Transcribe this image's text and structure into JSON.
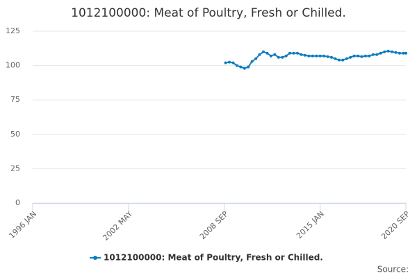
{
  "chart_data": {
    "type": "line",
    "title": "1012100000: Meat of Poultry, Fresh or Chilled.",
    "source": "Source:",
    "x": [
      "2008-10",
      "2009-01",
      "2009-04",
      "2009-07",
      "2009-10",
      "2010-01",
      "2010-04",
      "2010-07",
      "2010-10",
      "2011-01",
      "2011-04",
      "2011-07",
      "2011-10",
      "2012-01",
      "2012-04",
      "2012-07",
      "2012-10",
      "2013-01",
      "2013-04",
      "2013-07",
      "2013-10",
      "2014-01",
      "2014-04",
      "2014-07",
      "2014-10",
      "2015-01",
      "2015-04",
      "2015-07",
      "2015-10",
      "2016-01",
      "2016-04",
      "2016-07",
      "2016-10",
      "2017-01",
      "2017-04",
      "2017-07",
      "2017-10",
      "2018-01",
      "2018-04",
      "2018-07",
      "2018-10",
      "2019-01",
      "2019-04",
      "2019-07",
      "2019-10",
      "2020-01",
      "2020-04",
      "2020-07",
      "2020-09"
    ],
    "series": [
      {
        "name": "1012100000: Meat of Poultry, Fresh or Chilled.",
        "color": "#0f7cbf",
        "values": [
          102,
          102.5,
          102,
          100,
          99,
          98,
          99,
          103,
          105,
          108,
          110,
          109,
          107,
          108,
          106,
          106,
          107,
          109,
          109,
          109,
          108,
          107.5,
          107,
          107,
          107,
          107,
          107,
          106.5,
          106,
          105,
          104,
          104,
          105,
          106,
          107,
          107,
          106.5,
          107,
          107,
          108,
          108,
          109,
          110,
          110.5,
          110,
          109.5,
          109,
          109,
          109
        ]
      }
    ],
    "xlim": [
      "1996-01",
      "2020-09"
    ],
    "xticks": [
      {
        "value": "1996-01",
        "label": "1996 JAN"
      },
      {
        "value": "2002-05",
        "label": "2002 MAY"
      },
      {
        "value": "2008-09",
        "label": "2008 SEP"
      },
      {
        "value": "2015-01",
        "label": "2015 JAN"
      },
      {
        "value": "2020-09",
        "label": "2020 SEP"
      }
    ],
    "ylim": [
      0,
      125
    ],
    "yticks": [
      0,
      25,
      50,
      75,
      100,
      125
    ],
    "grid": true,
    "legend": "bottom"
  }
}
